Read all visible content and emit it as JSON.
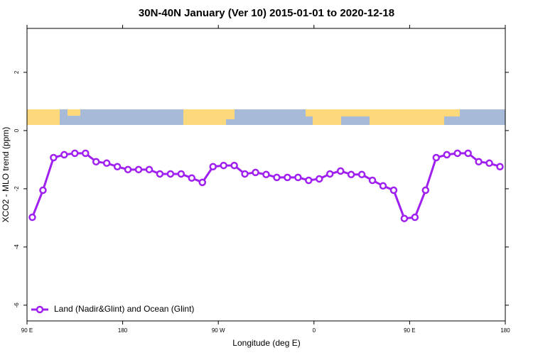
{
  "chart_data": {
    "type": "line",
    "title": "30N-40N January (Ver 10)   2015-01-01 to 2020-12-18",
    "xlabel": "Longitude (deg E)",
    "ylabel": "XCO2 - MLO trend (ppm)",
    "x": [
      95,
      105,
      115,
      125,
      135,
      145,
      155,
      165,
      175,
      185,
      195,
      205,
      215,
      225,
      235,
      245,
      255,
      265,
      275,
      285,
      295,
      305,
      315,
      325,
      335,
      345,
      355,
      365,
      375,
      385,
      395,
      405,
      415,
      425,
      435,
      445,
      455,
      465,
      475,
      485,
      495,
      505,
      515,
      525,
      535
    ],
    "series": [
      {
        "name": "Land (Nadir&Glint) and Ocean (Glint)",
        "color": "#a020f0",
        "values": [
          -2.98,
          -2.05,
          -0.93,
          -0.83,
          -0.78,
          -0.78,
          -1.07,
          -1.12,
          -1.24,
          -1.34,
          -1.34,
          -1.34,
          -1.49,
          -1.49,
          -1.49,
          -1.63,
          -1.78,
          -1.24,
          -1.2,
          -1.2,
          -1.49,
          -1.44,
          -1.51,
          -1.61,
          -1.61,
          -1.61,
          -1.71,
          -1.66,
          -1.49,
          -1.39,
          -1.51,
          -1.51,
          -1.71,
          -1.9,
          -2.05,
          -3.02,
          -2.98,
          -2.05,
          -0.93,
          -0.83,
          -0.78,
          -0.78,
          -1.07,
          -1.12,
          -1.24
        ]
      }
    ],
    "xlim": [
      90,
      540
    ],
    "xticks": [
      {
        "value": 90,
        "label": "90 E"
      },
      180,
      {
        "value": 270,
        "label": "90 W"
      },
      {
        "value": 360,
        "label": "0"
      },
      {
        "value": 450,
        "label": "90 E"
      },
      {
        "value": 540,
        "label": "180"
      }
    ],
    "ylim": [
      -6.54,
      3.51
    ],
    "yticks": [
      -6,
      -4,
      -2,
      0,
      2
    ],
    "legend": "bottom-left"
  }
}
